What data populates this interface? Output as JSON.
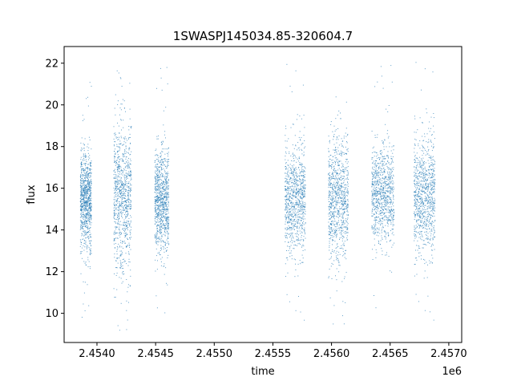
{
  "chart_data": {
    "type": "scatter",
    "title": "1SWASPJ145034.85-320604.7",
    "xlabel": "time",
    "ylabel": "flux",
    "x_offset_label": "1e6",
    "xlim": [
      2453720,
      2457110
    ],
    "ylim": [
      8.6,
      22.8
    ],
    "xticks": [
      2.454,
      2.4545,
      2.455,
      2.4555,
      2.456,
      2.4565,
      2.457
    ],
    "xtick_labels": [
      "2.4540",
      "2.4545",
      "2.4550",
      "2.4555",
      "2.4560",
      "2.4565",
      "2.4570"
    ],
    "yticks": [
      10,
      12,
      14,
      16,
      18,
      20,
      22
    ],
    "ytick_labels": [
      "10",
      "12",
      "14",
      "16",
      "18",
      "20",
      "22"
    ],
    "grid": false,
    "marker_color": "#1f77b4",
    "observing_seasons": [
      {
        "x_start": 2453855,
        "x_end": 2453950,
        "center": 15.4,
        "spread": 1.2,
        "y_min": 9.4,
        "y_max": 21.4
      },
      {
        "x_start": 2454140,
        "x_end": 2454290,
        "center": 15.6,
        "spread": 1.7,
        "y_min": 9.2,
        "y_max": 22.2
      },
      {
        "x_start": 2454490,
        "x_end": 2454610,
        "center": 15.4,
        "spread": 1.3,
        "y_min": 9.4,
        "y_max": 22.1
      },
      {
        "x_start": 2455600,
        "x_end": 2455775,
        "center": 15.4,
        "spread": 1.3,
        "y_min": 9.2,
        "y_max": 22.0
      },
      {
        "x_start": 2455970,
        "x_end": 2456140,
        "center": 15.6,
        "spread": 1.5,
        "y_min": 9.3,
        "y_max": 21.2
      },
      {
        "x_start": 2456340,
        "x_end": 2456530,
        "center": 15.7,
        "spread": 1.2,
        "y_min": 9.4,
        "y_max": 22.2
      },
      {
        "x_start": 2456700,
        "x_end": 2456880,
        "center": 15.6,
        "spread": 1.4,
        "y_min": 9.2,
        "y_max": 22.1
      }
    ],
    "points_per_season": 900
  }
}
